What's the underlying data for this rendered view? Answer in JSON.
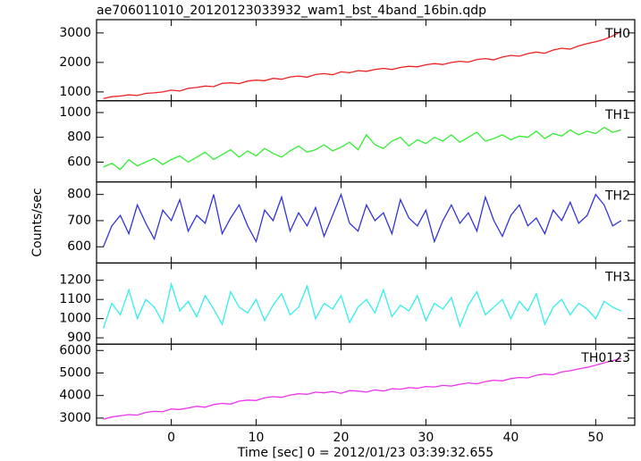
{
  "title": "ae706011010_20120123033932_wam1_bst_4band_16bin.qdp",
  "x_label": "Time [sec] 0 = 2012/01/23 03:39:32.655",
  "y_label": "Counts/sec",
  "xlim": [
    -8.8,
    54.6
  ],
  "xticks": [
    0,
    10,
    20,
    30,
    40,
    50
  ],
  "chart_data": [
    {
      "type": "line",
      "label": "TH0",
      "color": "#ee2222",
      "ylim": [
        700,
        3450
      ],
      "yticks": [
        1000,
        2000,
        3000
      ],
      "x": [
        -8,
        -7,
        -6,
        -5,
        -4,
        -3,
        -2,
        -1,
        0,
        1,
        2,
        3,
        4,
        5,
        6,
        7,
        8,
        9,
        10,
        11,
        12,
        13,
        14,
        15,
        16,
        17,
        18,
        19,
        20,
        21,
        22,
        23,
        24,
        25,
        26,
        27,
        28,
        29,
        30,
        31,
        32,
        33,
        34,
        35,
        36,
        37,
        38,
        39,
        40,
        41,
        42,
        43,
        44,
        45,
        46,
        47,
        48,
        49,
        50,
        51,
        52,
        53
      ],
      "values": [
        780,
        840,
        860,
        900,
        880,
        950,
        970,
        1000,
        1060,
        1030,
        1120,
        1150,
        1200,
        1180,
        1290,
        1310,
        1280,
        1370,
        1400,
        1380,
        1460,
        1430,
        1510,
        1540,
        1500,
        1590,
        1620,
        1580,
        1680,
        1650,
        1720,
        1700,
        1760,
        1800,
        1760,
        1830,
        1870,
        1850,
        1920,
        1960,
        1930,
        2000,
        2040,
        2010,
        2100,
        2130,
        2090,
        2180,
        2240,
        2210,
        2300,
        2350,
        2310,
        2420,
        2480,
        2450,
        2560,
        2640,
        2700,
        2780,
        2900,
        3050
      ]
    },
    {
      "type": "line",
      "label": "TH1",
      "color": "#33ee33",
      "ylim": [
        440,
        1095
      ],
      "yticks": [
        600,
        800,
        1000
      ],
      "x": [
        -8,
        -7,
        -6,
        -5,
        -4,
        -3,
        -2,
        -1,
        0,
        1,
        2,
        3,
        4,
        5,
        6,
        7,
        8,
        9,
        10,
        11,
        12,
        13,
        14,
        15,
        16,
        17,
        18,
        19,
        20,
        21,
        22,
        23,
        24,
        25,
        26,
        27,
        28,
        29,
        30,
        31,
        32,
        33,
        34,
        35,
        36,
        37,
        38,
        39,
        40,
        41,
        42,
        43,
        44,
        45,
        46,
        47,
        48,
        49,
        50,
        51,
        52,
        53
      ],
      "values": [
        560,
        590,
        540,
        620,
        570,
        600,
        630,
        580,
        620,
        650,
        600,
        640,
        680,
        620,
        660,
        700,
        640,
        690,
        650,
        710,
        670,
        640,
        690,
        730,
        680,
        700,
        740,
        690,
        720,
        760,
        700,
        820,
        740,
        710,
        770,
        800,
        730,
        780,
        750,
        800,
        770,
        820,
        760,
        800,
        840,
        770,
        790,
        820,
        780,
        810,
        800,
        850,
        790,
        830,
        810,
        860,
        820,
        850,
        830,
        880,
        840,
        860
      ]
    },
    {
      "type": "line",
      "label": "TH2",
      "color": "#3333dd",
      "ylim": [
        538,
        848
      ],
      "yticks": [
        600,
        700,
        800
      ],
      "x": [
        -8,
        -7,
        -6,
        -5,
        -4,
        -3,
        -2,
        -1,
        0,
        1,
        2,
        3,
        4,
        5,
        6,
        7,
        8,
        9,
        10,
        11,
        12,
        13,
        14,
        15,
        16,
        17,
        18,
        19,
        20,
        21,
        22,
        23,
        24,
        25,
        26,
        27,
        28,
        29,
        30,
        31,
        32,
        33,
        34,
        35,
        36,
        37,
        38,
        39,
        40,
        41,
        42,
        43,
        44,
        45,
        46,
        47,
        48,
        49,
        50,
        51,
        52,
        53
      ],
      "values": [
        600,
        680,
        720,
        650,
        760,
        690,
        630,
        740,
        700,
        780,
        660,
        720,
        690,
        800,
        650,
        710,
        760,
        680,
        620,
        740,
        700,
        790,
        660,
        730,
        680,
        750,
        640,
        720,
        800,
        690,
        660,
        760,
        700,
        730,
        650,
        780,
        710,
        680,
        740,
        620,
        700,
        760,
        690,
        730,
        660,
        790,
        700,
        640,
        720,
        760,
        680,
        710,
        650,
        740,
        700,
        770,
        690,
        720,
        800,
        760,
        680,
        700
      ]
    },
    {
      "type": "line",
      "label": "TH3",
      "color": "#33eeee",
      "ylim": [
        867,
        1290
      ],
      "yticks": [
        900,
        1000,
        1100,
        1200
      ],
      "x": [
        -8,
        -7,
        -6,
        -5,
        -4,
        -3,
        -2,
        -1,
        0,
        1,
        2,
        3,
        4,
        5,
        6,
        7,
        8,
        9,
        10,
        11,
        12,
        13,
        14,
        15,
        16,
        17,
        18,
        19,
        20,
        21,
        22,
        23,
        24,
        25,
        26,
        27,
        28,
        29,
        30,
        31,
        32,
        33,
        34,
        35,
        36,
        37,
        38,
        39,
        40,
        41,
        42,
        43,
        44,
        45,
        46,
        47,
        48,
        49,
        50,
        51,
        52,
        53
      ],
      "values": [
        950,
        1080,
        1020,
        1150,
        1000,
        1100,
        1060,
        980,
        1180,
        1040,
        1090,
        1010,
        1120,
        1050,
        970,
        1140,
        1060,
        1030,
        1100,
        990,
        1070,
        1130,
        1020,
        1060,
        1170,
        1000,
        1080,
        1050,
        1120,
        980,
        1060,
        1100,
        1030,
        1150,
        1010,
        1070,
        1040,
        1120,
        990,
        1080,
        1050,
        1110,
        960,
        1070,
        1140,
        1020,
        1060,
        1100,
        1000,
        1090,
        1040,
        1130,
        970,
        1060,
        1100,
        1020,
        1080,
        1050,
        1000,
        1090,
        1060,
        1040
      ]
    },
    {
      "type": "line",
      "label": "TH0123",
      "color": "#ee33ee",
      "ylim": [
        2680,
        6280
      ],
      "yticks": [
        3000,
        4000,
        5000,
        6000
      ],
      "x": [
        -8,
        -7,
        -6,
        -5,
        -4,
        -3,
        -2,
        -1,
        0,
        1,
        2,
        3,
        4,
        5,
        6,
        7,
        8,
        9,
        10,
        11,
        12,
        13,
        14,
        15,
        16,
        17,
        18,
        19,
        20,
        21,
        22,
        23,
        24,
        25,
        26,
        27,
        28,
        29,
        30,
        31,
        32,
        33,
        34,
        35,
        36,
        37,
        38,
        39,
        40,
        41,
        42,
        43,
        44,
        45,
        46,
        47,
        48,
        49,
        50,
        51,
        52,
        53
      ],
      "values": [
        2950,
        3050,
        3100,
        3150,
        3130,
        3250,
        3300,
        3280,
        3400,
        3380,
        3450,
        3520,
        3480,
        3600,
        3650,
        3620,
        3750,
        3800,
        3780,
        3900,
        3950,
        3920,
        4020,
        4080,
        4050,
        4150,
        4120,
        4180,
        4100,
        4220,
        4200,
        4150,
        4250,
        4200,
        4300,
        4280,
        4350,
        4320,
        4400,
        4380,
        4450,
        4420,
        4500,
        4560,
        4520,
        4620,
        4680,
        4650,
        4750,
        4800,
        4780,
        4900,
        4950,
        4920,
        5050,
        5100,
        5180,
        5250,
        5350,
        5450,
        5550,
        5650
      ]
    }
  ]
}
